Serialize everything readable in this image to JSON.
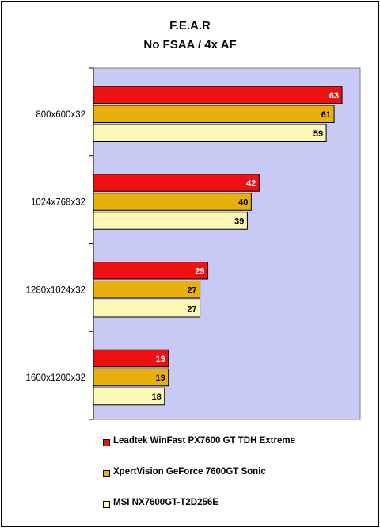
{
  "chart_data": {
    "type": "bar",
    "orientation": "horizontal",
    "title": "F.E.A.R",
    "subtitle": "No FSAA / 4x AF",
    "categories": [
      "800x600x32",
      "1024x768x32",
      "1280x1024x32",
      "1600x1200x32"
    ],
    "series": [
      {
        "name": "Leadtek WinFast PX7600 GT TDH Extreme",
        "color": "#ee1111",
        "label_color": "#ffffff",
        "values": [
          63,
          42,
          29,
          19
        ]
      },
      {
        "name": "XpertVision GeForce 7600GT Sonic",
        "color": "#e8b00a",
        "label_color": "#000000",
        "values": [
          61,
          40,
          27,
          19
        ]
      },
      {
        "name": "MSI NX7600GT-T2D256E",
        "color": "#fbf7b4",
        "label_color": "#000000",
        "values": [
          59,
          39,
          27,
          18
        ]
      }
    ],
    "xlim": [
      0,
      65
    ],
    "grid": false,
    "plot_background": "#c9c9f5",
    "legend_position": "bottom"
  }
}
